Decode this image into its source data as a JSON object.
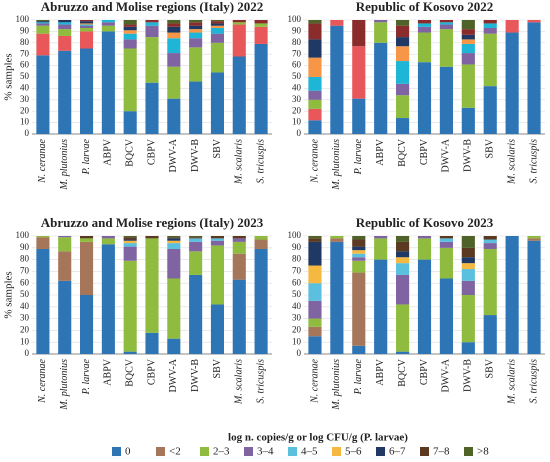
{
  "chart_data": [
    {
      "type": "stacked_bar",
      "title": "Abruzzo and Molise regions (Italy) 2022",
      "ylabel": "% samples",
      "categories": [
        "N. ceranae",
        "M. plutonius",
        "P. larvae",
        "ABPV",
        "BQCV",
        "CBPV",
        "DWV-A",
        "DWV-B",
        "SBV",
        "M. scalaris",
        "S. tricuspis"
      ],
      "ylim": [
        0,
        100
      ],
      "yticks": [
        0,
        10,
        20,
        30,
        40,
        50,
        60,
        70,
        80,
        90,
        100
      ],
      "series": [
        {
          "color": "#2e75b6",
          "values": [
            69,
            73,
            75,
            90,
            20,
            45,
            31,
            46,
            54,
            68,
            79
          ]
        },
        {
          "color": "#e8575a",
          "values": [
            19,
            13,
            15,
            0,
            0,
            0,
            0,
            0,
            0,
            28,
            15
          ]
        },
        {
          "color": "#8fbc3f",
          "values": [
            7,
            6,
            3,
            5,
            55,
            40,
            28,
            30,
            26,
            2,
            3
          ]
        },
        {
          "color": "#8064a2",
          "values": [
            2,
            4,
            2,
            3,
            8,
            10,
            12,
            8,
            8,
            0,
            0
          ]
        },
        {
          "color": "#1fb5d6",
          "values": [
            1,
            2,
            1,
            2,
            5,
            3,
            13,
            5,
            5,
            0,
            0
          ]
        },
        {
          "color": "#f79646",
          "values": [
            0,
            0,
            1,
            0,
            3,
            0,
            5,
            3,
            2,
            0,
            0
          ]
        },
        {
          "color": "#1f3864",
          "values": [
            1,
            2,
            2,
            0,
            3,
            0,
            5,
            3,
            2,
            0,
            0
          ]
        },
        {
          "color": "#8b2c2c",
          "values": [
            0,
            0,
            1,
            0,
            2,
            2,
            3,
            3,
            2,
            2,
            3
          ]
        },
        {
          "color": "#4f6228",
          "values": [
            1,
            0,
            0,
            0,
            4,
            0,
            3,
            2,
            1,
            0,
            0
          ]
        }
      ]
    },
    {
      "type": "stacked_bar",
      "title": "Republic of Kosovo 2022",
      "categories": [
        "N. ceranae",
        "M. plutonius",
        "P. larvae",
        "ABPV",
        "BQCV",
        "CBPV",
        "DWV-A",
        "DWV-B",
        "SBV",
        "M. scalaris",
        "S. tricuspis"
      ],
      "ylim": [
        0,
        100
      ],
      "yticks": [
        0,
        10,
        20,
        30,
        40,
        50,
        60,
        70,
        80,
        90,
        100
      ],
      "series": [
        {
          "color": "#2e75b6",
          "values": [
            12,
            95,
            31,
            80,
            14,
            63,
            59,
            23,
            42,
            89,
            98
          ]
        },
        {
          "color": "#e8575a",
          "values": [
            10,
            5,
            46,
            0,
            0,
            0,
            0,
            0,
            0,
            11,
            2
          ]
        },
        {
          "color": "#8fbc3f",
          "values": [
            8,
            0,
            0,
            18,
            20,
            26,
            33,
            38,
            46,
            0,
            0
          ]
        },
        {
          "color": "#8064a2",
          "values": [
            8,
            0,
            0,
            2,
            10,
            5,
            4,
            10,
            5,
            0,
            0
          ]
        },
        {
          "color": "#1fb5d6",
          "values": [
            12,
            0,
            0,
            0,
            20,
            3,
            2,
            8,
            4,
            0,
            0
          ]
        },
        {
          "color": "#f79646",
          "values": [
            17,
            0,
            0,
            0,
            13,
            0,
            0,
            4,
            0,
            0,
            0
          ]
        },
        {
          "color": "#1f3864",
          "values": [
            16,
            0,
            0,
            0,
            8,
            0,
            0,
            4,
            0,
            0,
            0
          ]
        },
        {
          "color": "#8b2c2c",
          "values": [
            14,
            0,
            23,
            0,
            10,
            3,
            2,
            5,
            3,
            0,
            0
          ]
        },
        {
          "color": "#4f6228",
          "values": [
            3,
            0,
            0,
            0,
            5,
            0,
            0,
            8,
            0,
            0,
            0
          ]
        }
      ]
    },
    {
      "type": "stacked_bar",
      "title": "Abruzzo and Molise regions (Italy) 2023",
      "ylabel": "% samples",
      "categories": [
        "N. ceranae",
        "M. plutonius",
        "P. larvae",
        "ABPV",
        "BQCV",
        "CBPV",
        "DWV-A",
        "DWV-B",
        "SBV",
        "M. scalaris",
        "S. tricuspis"
      ],
      "ylim": [
        0,
        100
      ],
      "yticks": [
        0,
        10,
        20,
        30,
        40,
        50,
        60,
        70,
        80,
        90,
        100
      ],
      "series": [
        {
          "color": "#2e75b6",
          "values": [
            89,
            62,
            50,
            93,
            2,
            18,
            13,
            67,
            42,
            63,
            89
          ]
        },
        {
          "color": "#a5765a",
          "values": [
            10,
            25,
            45,
            0,
            0,
            0,
            0,
            0,
            0,
            22,
            8
          ]
        },
        {
          "color": "#8fbc3f",
          "values": [
            1,
            12,
            3,
            5,
            77,
            80,
            51,
            20,
            50,
            10,
            3
          ]
        },
        {
          "color": "#8064a2",
          "values": [
            0,
            1,
            0,
            2,
            12,
            0,
            25,
            8,
            4,
            3,
            0
          ]
        },
        {
          "color": "#5bc0de",
          "values": [
            0,
            0,
            0,
            0,
            3,
            0,
            5,
            3,
            2,
            0,
            0
          ]
        },
        {
          "color": "#f5b942",
          "values": [
            0,
            0,
            0,
            0,
            2,
            0,
            2,
            0,
            0,
            0,
            0
          ]
        },
        {
          "color": "#1f3864",
          "values": [
            0,
            0,
            0,
            0,
            1,
            0,
            2,
            0,
            0,
            0,
            0
          ]
        },
        {
          "color": "#5c3a21",
          "values": [
            0,
            0,
            2,
            0,
            2,
            2,
            1,
            1,
            2,
            2,
            0
          ]
        },
        {
          "color": "#4f6228",
          "values": [
            0,
            0,
            0,
            0,
            1,
            0,
            1,
            1,
            0,
            0,
            0
          ]
        }
      ]
    },
    {
      "type": "stacked_bar",
      "title": "Republic of Kosovo 2023",
      "categories": [
        "N. ceranae",
        "M. plutonius",
        "P. larvae",
        "ABPV",
        "BQCV",
        "CBPV",
        "DWV-A",
        "DWV-B",
        "SBV",
        "M. scalaris",
        "S. tricuspis"
      ],
      "ylim": [
        0,
        100
      ],
      "yticks": [
        0,
        10,
        20,
        30,
        40,
        50,
        60,
        70,
        80,
        90,
        100
      ],
      "series": [
        {
          "name": "0",
          "color": "#2e75b6",
          "values": [
            15,
            95,
            7,
            80,
            2,
            80,
            64,
            10,
            33,
            100,
            96
          ]
        },
        {
          "name": "<2",
          "color": "#a5765a",
          "values": [
            8,
            3,
            62,
            0,
            0,
            0,
            0,
            0,
            0,
            0,
            2
          ]
        },
        {
          "name": "2–3",
          "color": "#8fbc3f",
          "values": [
            7,
            2,
            10,
            18,
            40,
            18,
            26,
            40,
            56,
            0,
            2
          ]
        },
        {
          "name": "3–4",
          "color": "#8064a2",
          "values": [
            15,
            0,
            3,
            2,
            25,
            2,
            5,
            12,
            5,
            0,
            0
          ]
        },
        {
          "name": "4–5",
          "color": "#5bc0de",
          "values": [
            15,
            0,
            3,
            0,
            10,
            0,
            3,
            10,
            3,
            0,
            0
          ]
        },
        {
          "name": "5–6",
          "color": "#f5b942",
          "values": [
            15,
            0,
            3,
            0,
            5,
            0,
            0,
            5,
            0,
            0,
            0
          ]
        },
        {
          "name": "6–7",
          "color": "#1f3864",
          "values": [
            20,
            0,
            3,
            0,
            5,
            0,
            0,
            5,
            0,
            0,
            0
          ]
        },
        {
          "name": "7–8",
          "color": "#5c3a21",
          "values": [
            3,
            0,
            6,
            0,
            8,
            0,
            2,
            8,
            3,
            0,
            0
          ]
        },
        {
          "name": ">8",
          "color": "#4f6228",
          "values": [
            2,
            0,
            3,
            0,
            5,
            0,
            0,
            10,
            0,
            0,
            0
          ]
        }
      ]
    }
  ],
  "legend_title": "log n. copies/g or log CFU/g (P. larvae)"
}
